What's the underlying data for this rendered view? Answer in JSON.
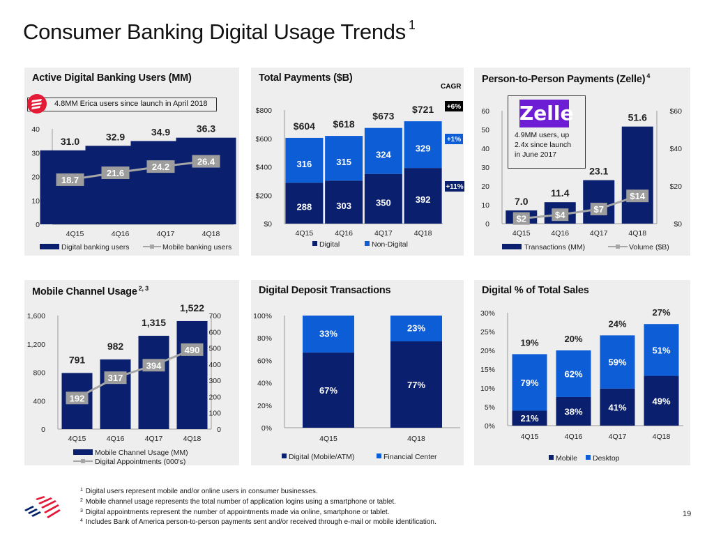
{
  "page": {
    "title": "Consumer Banking Digital Usage Trends",
    "title_footnote": "1",
    "page_number": "19"
  },
  "colors": {
    "navy": "#0a1f6e",
    "blue": "#0c5dd6",
    "gray_line": "#a6a6a6",
    "gray_label": "#9d9d9d",
    "panel_bg": "#eeeeee",
    "erica_red": "#e31b37",
    "zelle_purple": "#6d1ed4",
    "boa_red": "#e31837",
    "boa_blue": "#012169"
  },
  "footnotes": [
    {
      "num": "1",
      "text": "Digital users represent mobile and/or online users in consumer businesses."
    },
    {
      "num": "2",
      "text": "Mobile channel usage represents the total number of application logins using a smartphone or tablet."
    },
    {
      "num": "3",
      "text": "Digital appointments represent the number of appointments made via online, smartphone or tablet."
    },
    {
      "num": "4",
      "text": "Includes Bank of America person-to-person payments sent and/or received through e-mail or mobile identification."
    }
  ],
  "panels": {
    "digital_users": {
      "title": "Active Digital Banking Users (MM)",
      "note": "4.8MM Erica users since launch in April 2018",
      "note_icon": "erica-icon"
    },
    "total_payments": {
      "title": "Total Payments ($B)",
      "cagr_label": "CAGR"
    },
    "zelle": {
      "title": "Person-to-Person Payments (Zelle)",
      "title_footnote": "4",
      "logo_text": "Zelle",
      "note_lines": [
        "4.9MM users, up",
        "2.4x since launch",
        "in June 2017"
      ]
    },
    "mobile_channel": {
      "title": "Mobile Channel Usage",
      "title_footnote": "2, 3"
    },
    "deposit": {
      "title": "Digital Deposit Transactions"
    },
    "sales": {
      "title": "Digital % of Total Sales"
    }
  },
  "chart_data": [
    {
      "id": "digital_users",
      "type": "bar",
      "title": "Active Digital Banking Users (MM)",
      "categories": [
        "4Q15",
        "4Q16",
        "4Q17",
        "4Q18"
      ],
      "series": [
        {
          "name": "Digital banking users",
          "kind": "bar",
          "values": [
            31.0,
            32.9,
            34.9,
            36.3
          ],
          "labels": [
            "31.0",
            "32.9",
            "34.9",
            "36.3"
          ]
        },
        {
          "name": "Mobile banking users",
          "kind": "line",
          "values": [
            18.7,
            21.6,
            24.2,
            26.4
          ],
          "labels": [
            "18.7",
            "21.6",
            "24.2",
            "26.4"
          ]
        }
      ],
      "ylim": [
        0,
        40
      ],
      "yticks": [
        {
          "v": 0,
          "label": "0"
        },
        {
          "v": 10,
          "label": "10"
        },
        {
          "v": 20,
          "label": "20"
        },
        {
          "v": 30,
          "label": "30"
        },
        {
          "v": 40,
          "label": "40"
        }
      ],
      "legend": "bottom",
      "grid": false
    },
    {
      "id": "total_payments",
      "type": "bar",
      "stacked": true,
      "title": "Total Payments ($B)",
      "categories": [
        "4Q15",
        "4Q16",
        "4Q17",
        "4Q18"
      ],
      "series": [
        {
          "name": "Digital",
          "values": [
            288,
            303,
            350,
            392
          ],
          "cagr": "+11%"
        },
        {
          "name": "Non-Digital",
          "values": [
            316,
            315,
            324,
            329
          ],
          "cagr": "+1%"
        }
      ],
      "totals": [
        "$604",
        "$618",
        "$673",
        "$721"
      ],
      "total_cagr": "+6%",
      "ylim": [
        0,
        800
      ],
      "yticks": [
        {
          "v": 0,
          "label": "$0"
        },
        {
          "v": 200,
          "label": "$200"
        },
        {
          "v": 400,
          "label": "$400"
        },
        {
          "v": 600,
          "label": "$600"
        },
        {
          "v": 800,
          "label": "$800"
        }
      ],
      "legend": "bottom",
      "grid": false
    },
    {
      "id": "zelle",
      "type": "bar",
      "title": "Person-to-Person Payments (Zelle)",
      "categories": [
        "4Q15",
        "4Q16",
        "4Q17",
        "4Q18"
      ],
      "series": [
        {
          "name": "Transactions (MM)",
          "kind": "bar",
          "axis": "left",
          "values": [
            7.0,
            11.4,
            23.1,
            51.6
          ],
          "labels": [
            "7.0",
            "11.4",
            "23.1",
            "51.6"
          ]
        },
        {
          "name": "Volume ($B)",
          "kind": "line",
          "axis": "right",
          "values": [
            2,
            4,
            7,
            14
          ],
          "labels": [
            "$2",
            "$4",
            "$7",
            "$14"
          ]
        }
      ],
      "ylim": [
        0,
        60
      ],
      "yticks": [
        {
          "v": 0,
          "label": "0"
        },
        {
          "v": 10,
          "label": "10"
        },
        {
          "v": 20,
          "label": "20"
        },
        {
          "v": 30,
          "label": "30"
        },
        {
          "v": 40,
          "label": "40"
        },
        {
          "v": 50,
          "label": "50"
        },
        {
          "v": 60,
          "label": "60"
        }
      ],
      "y2lim": [
        0,
        60
      ],
      "y2ticks": [
        {
          "v": 0,
          "label": "$0"
        },
        {
          "v": 20,
          "label": "$20"
        },
        {
          "v": 40,
          "label": "$40"
        },
        {
          "v": 60,
          "label": "$60"
        }
      ],
      "legend": "bottom",
      "grid": false
    },
    {
      "id": "mobile_channel",
      "type": "bar",
      "title": "Mobile Channel Usage",
      "categories": [
        "4Q15",
        "4Q16",
        "4Q17",
        "4Q18"
      ],
      "series": [
        {
          "name": "Mobile Channel Usage (MM)",
          "kind": "bar",
          "axis": "left",
          "values": [
            791,
            982,
            1315,
            1522
          ],
          "labels": [
            "791",
            "982",
            "1,315",
            "1,522"
          ]
        },
        {
          "name": "Digital Appointments (000's)",
          "kind": "line",
          "axis": "right",
          "values": [
            192,
            317,
            394,
            490
          ],
          "labels": [
            "192",
            "317",
            "394",
            "490"
          ]
        }
      ],
      "ylim": [
        0,
        1600
      ],
      "yticks": [
        {
          "v": 0,
          "label": "0"
        },
        {
          "v": 400,
          "label": "400"
        },
        {
          "v": 800,
          "label": "800"
        },
        {
          "v": 1200,
          "label": "1,200"
        },
        {
          "v": 1600,
          "label": "1,600"
        }
      ],
      "y2lim": [
        0,
        700
      ],
      "y2ticks": [
        {
          "v": 0,
          "label": "0"
        },
        {
          "v": 100,
          "label": "100"
        },
        {
          "v": 200,
          "label": "200"
        },
        {
          "v": 300,
          "label": "300"
        },
        {
          "v": 400,
          "label": "400"
        },
        {
          "v": 500,
          "label": "500"
        },
        {
          "v": 600,
          "label": "600"
        },
        {
          "v": 700,
          "label": "700"
        }
      ],
      "legend": "bottom",
      "grid": false
    },
    {
      "id": "deposit",
      "type": "bar",
      "stacked": true,
      "title": "Digital Deposit Transactions",
      "categories": [
        "4Q15",
        "4Q18"
      ],
      "series": [
        {
          "name": "Digital (Mobile/ATM)",
          "values": [
            67,
            77
          ],
          "labels": [
            "67%",
            "77%"
          ]
        },
        {
          "name": "Financial Center",
          "values": [
            33,
            23
          ],
          "labels": [
            "33%",
            "23%"
          ]
        }
      ],
      "ylim": [
        0,
        100
      ],
      "yticks": [
        {
          "v": 0,
          "label": "0%"
        },
        {
          "v": 20,
          "label": "20%"
        },
        {
          "v": 40,
          "label": "40%"
        },
        {
          "v": 60,
          "label": "60%"
        },
        {
          "v": 80,
          "label": "80%"
        },
        {
          "v": 100,
          "label": "100%"
        }
      ],
      "legend": "bottom",
      "grid": false
    },
    {
      "id": "sales",
      "type": "bar",
      "stacked": true,
      "title": "Digital % of Total Sales",
      "categories": [
        "4Q15",
        "4Q16",
        "4Q17",
        "4Q18"
      ],
      "totals_values": [
        19,
        20,
        24,
        27
      ],
      "totals": [
        "19%",
        "20%",
        "24%",
        "27%"
      ],
      "series": [
        {
          "name": "Mobile",
          "share_of_total_pct": [
            21,
            38,
            41,
            49
          ],
          "labels": [
            "21%",
            "38%",
            "41%",
            "49%"
          ]
        },
        {
          "name": "Desktop",
          "share_of_total_pct": [
            79,
            62,
            59,
            51
          ],
          "labels": [
            "79%",
            "62%",
            "59%",
            "51%"
          ]
        }
      ],
      "ylim": [
        0,
        30
      ],
      "yticks": [
        {
          "v": 0,
          "label": "0%"
        },
        {
          "v": 5,
          "label": "5%"
        },
        {
          "v": 10,
          "label": "10%"
        },
        {
          "v": 15,
          "label": "15%"
        },
        {
          "v": 20,
          "label": "20%"
        },
        {
          "v": 25,
          "label": "25%"
        },
        {
          "v": 30,
          "label": "30%"
        }
      ],
      "legend": "bottom",
      "grid": false
    }
  ]
}
